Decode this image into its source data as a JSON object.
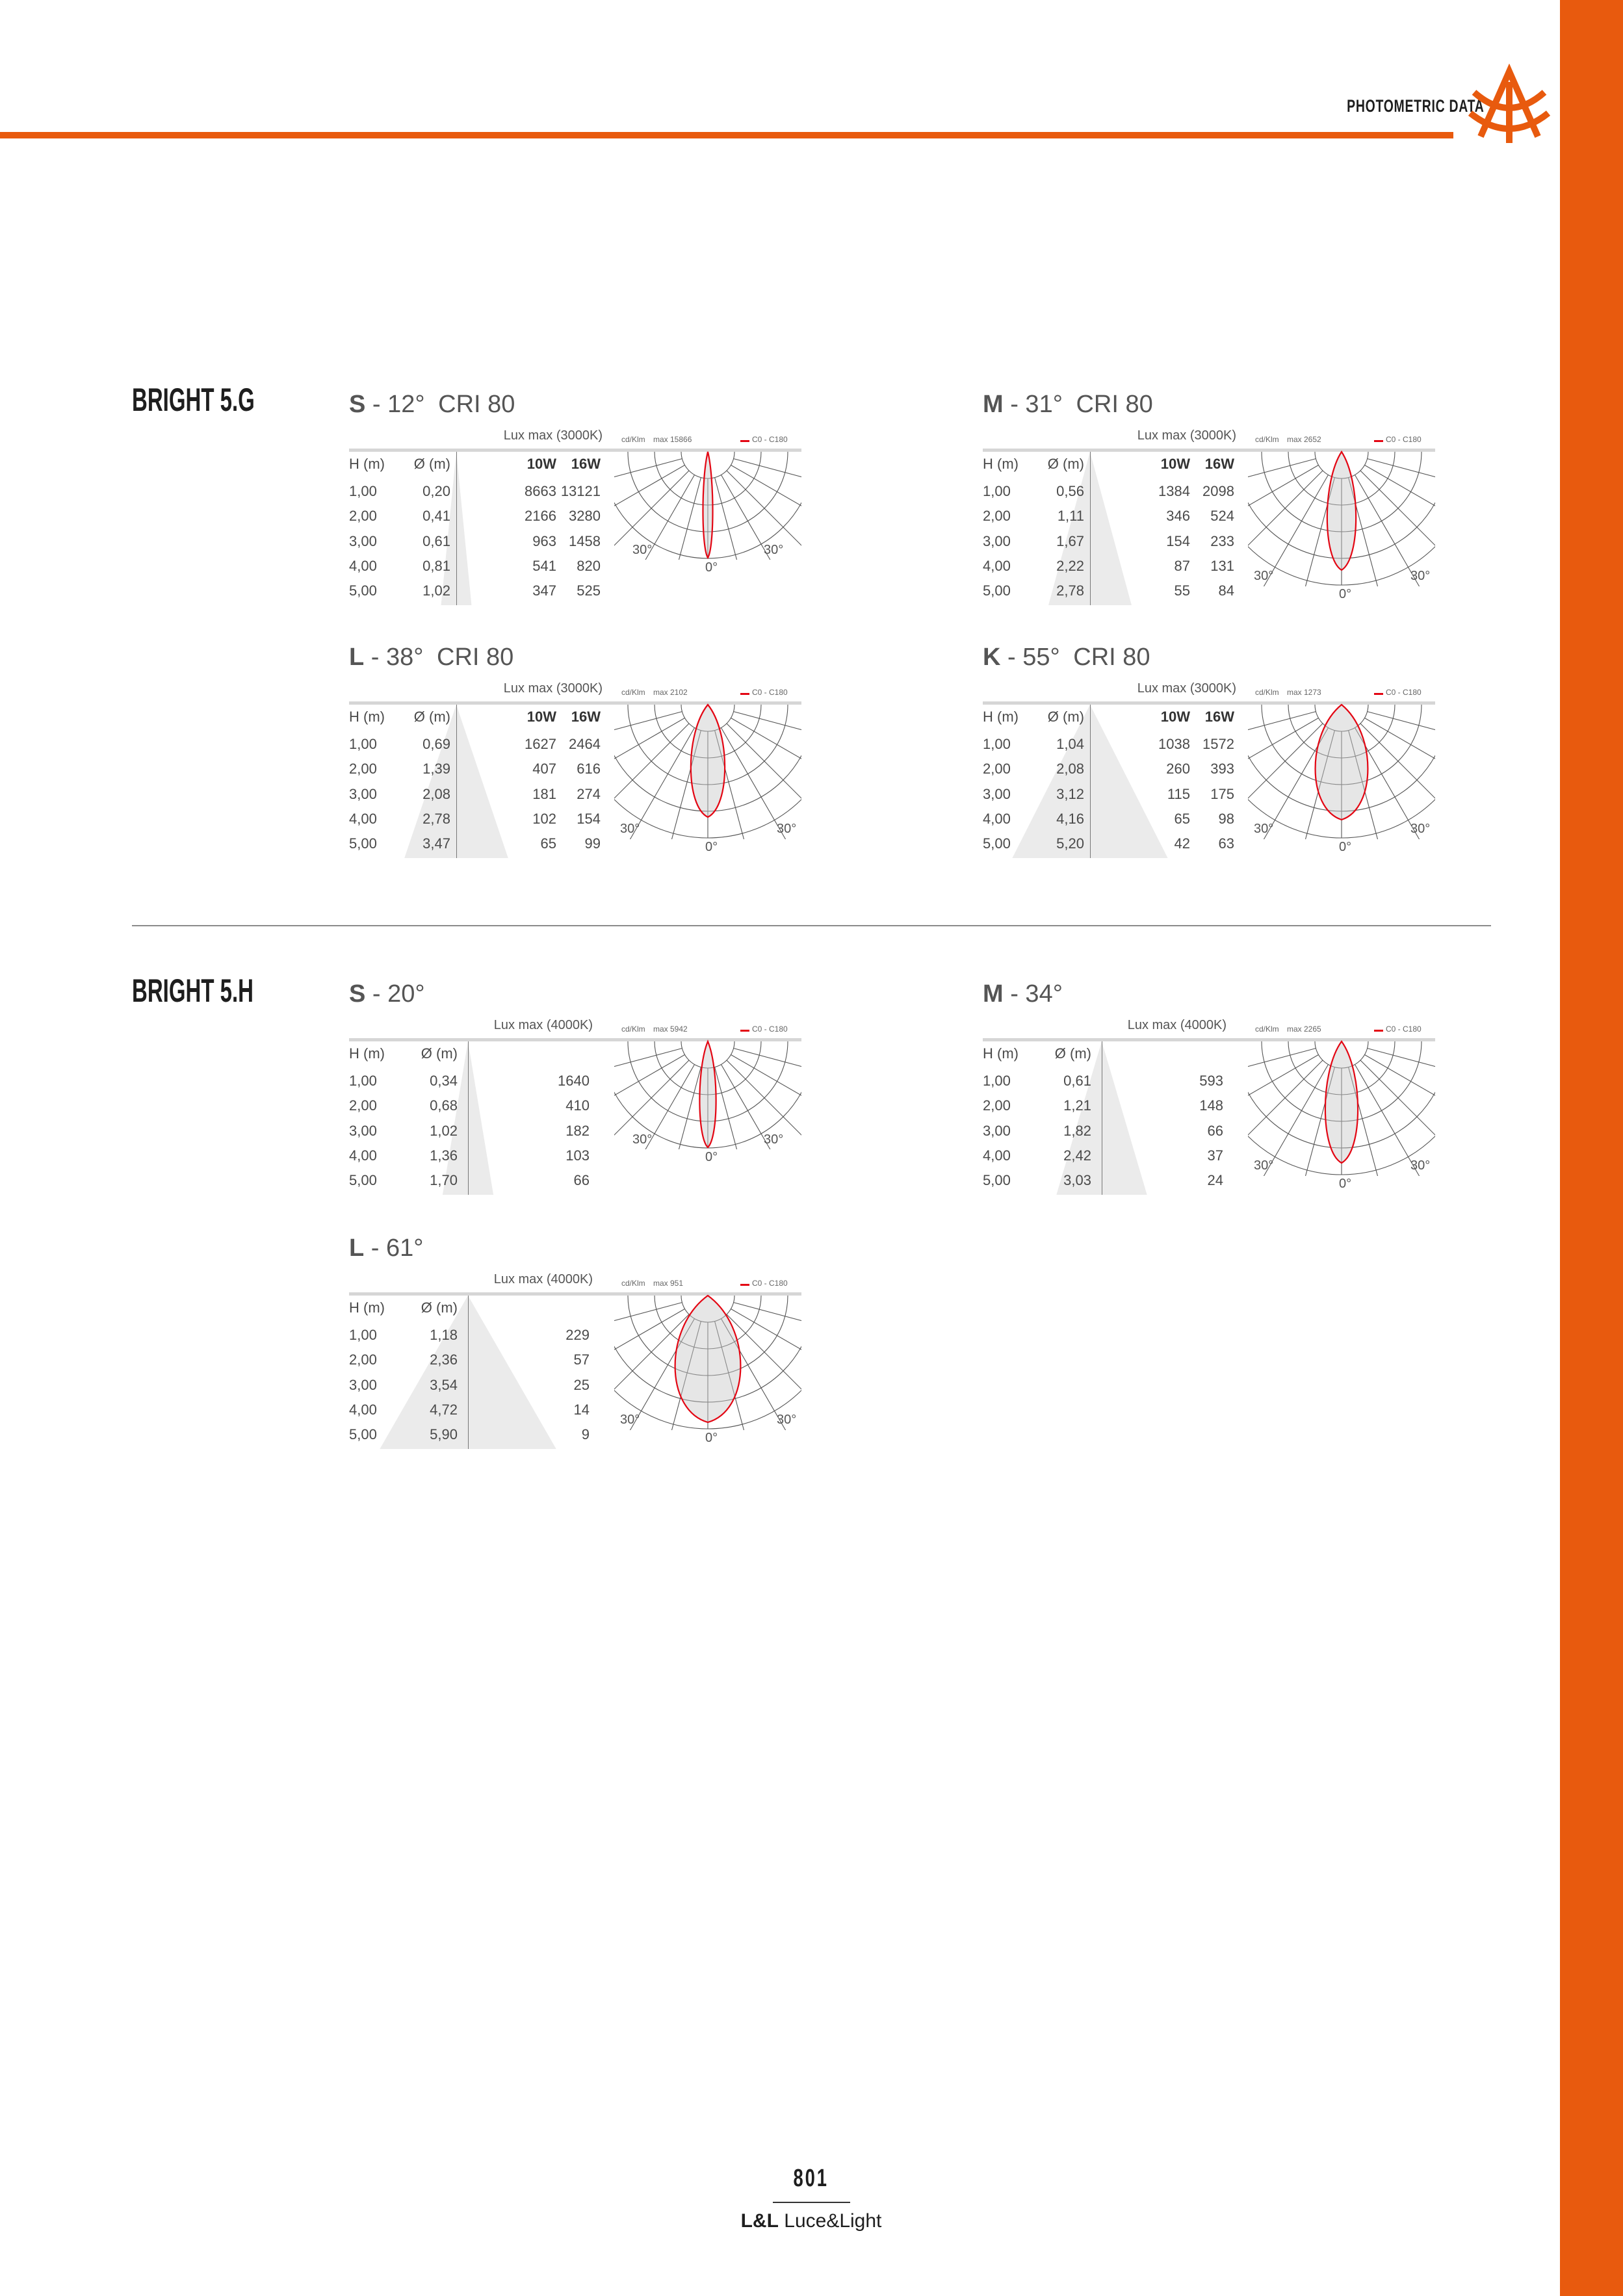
{
  "header": {
    "title": "PHOTOMETRIC DATA"
  },
  "colors": {
    "accent": "#e85a0e",
    "curve": "#e30613",
    "cone": "#ebebeb",
    "bar": "#d6d6d6"
  },
  "sections": [
    {
      "name": "BRIGHT 5.G",
      "blocks": [
        {
          "code": "S",
          "angle": "- 12°",
          "cri": "CRI 80",
          "lux_label": "Lux max (3000K)",
          "unit": "cd/Klm",
          "max": "max 15866",
          "legend": "C0 - C180",
          "headers": {
            "h": "H (m)",
            "d": "Ø (m)",
            "w": [
              "10W",
              "16W"
            ]
          },
          "rows": [
            [
              "1,00",
              "0,20",
              "8663",
              "13121"
            ],
            [
              "2,00",
              "0,41",
              "2166",
              "3280"
            ],
            [
              "3,00",
              "0,61",
              "963",
              "1458"
            ],
            [
              "4,00",
              "0,81",
              "541",
              "820"
            ],
            [
              "5,00",
              "1,02",
              "347",
              "525"
            ]
          ],
          "polar": {
            "left_label": "30°",
            "right_label": "30°",
            "bottom_label": "0°"
          }
        },
        {
          "code": "M",
          "angle": "- 31°",
          "cri": "CRI 80",
          "lux_label": "Lux max (3000K)",
          "unit": "cd/Klm",
          "max": "max 2652",
          "legend": "C0 - C180",
          "headers": {
            "h": "H (m)",
            "d": "Ø (m)",
            "w": [
              "10W",
              "16W"
            ]
          },
          "rows": [
            [
              "1,00",
              "0,56",
              "1384",
              "2098"
            ],
            [
              "2,00",
              "1,11",
              "346",
              "524"
            ],
            [
              "3,00",
              "1,67",
              "154",
              "233"
            ],
            [
              "4,00",
              "2,22",
              "87",
              "131"
            ],
            [
              "5,00",
              "2,78",
              "55",
              "84"
            ]
          ],
          "polar": {
            "left_label": "30°",
            "right_label": "30°",
            "bottom_label": "0°"
          }
        },
        {
          "code": "L",
          "angle": "- 38°",
          "cri": "CRI 80",
          "lux_label": "Lux max (3000K)",
          "unit": "cd/Klm",
          "max": "max 2102",
          "legend": "C0 - C180",
          "headers": {
            "h": "H (m)",
            "d": "Ø (m)",
            "w": [
              "10W",
              "16W"
            ]
          },
          "rows": [
            [
              "1,00",
              "0,69",
              "1627",
              "2464"
            ],
            [
              "2,00",
              "1,39",
              "407",
              "616"
            ],
            [
              "3,00",
              "2,08",
              "181",
              "274"
            ],
            [
              "4,00",
              "2,78",
              "102",
              "154"
            ],
            [
              "5,00",
              "3,47",
              "65",
              "99"
            ]
          ],
          "polar": {
            "left_label": "30°",
            "right_label": "30°",
            "bottom_label": "0°"
          }
        },
        {
          "code": "K",
          "angle": "- 55°",
          "cri": "CRI 80",
          "lux_label": "Lux max (3000K)",
          "unit": "cd/Klm",
          "max": "max 1273",
          "legend": "C0 - C180",
          "headers": {
            "h": "H (m)",
            "d": "Ø (m)",
            "w": [
              "10W",
              "16W"
            ]
          },
          "rows": [
            [
              "1,00",
              "1,04",
              "1038",
              "1572"
            ],
            [
              "2,00",
              "2,08",
              "260",
              "393"
            ],
            [
              "3,00",
              "3,12",
              "115",
              "175"
            ],
            [
              "4,00",
              "4,16",
              "65",
              "98"
            ],
            [
              "5,00",
              "5,20",
              "42",
              "63"
            ]
          ],
          "polar": {
            "left_label": "30°",
            "right_label": "30°",
            "bottom_label": "0°"
          }
        }
      ]
    },
    {
      "name": "BRIGHT 5.H",
      "blocks": [
        {
          "code": "S",
          "angle": "- 20°",
          "cri": "",
          "lux_label": "Lux max (4000K)",
          "unit": "cd/Klm",
          "max": "max 5942",
          "legend": "C0 - C180",
          "headers": {
            "h": "H (m)",
            "d": "Ø (m)",
            "w": []
          },
          "rows": [
            [
              "1,00",
              "0,34",
              "1640"
            ],
            [
              "2,00",
              "0,68",
              "410"
            ],
            [
              "3,00",
              "1,02",
              "182"
            ],
            [
              "4,00",
              "1,36",
              "103"
            ],
            [
              "5,00",
              "1,70",
              "66"
            ]
          ],
          "polar": {
            "left_label": "30°",
            "right_label": "30°",
            "bottom_label": "0°"
          }
        },
        {
          "code": "M",
          "angle": "- 34°",
          "cri": "",
          "lux_label": "Lux max (4000K)",
          "unit": "cd/Klm",
          "max": "max 2265",
          "legend": "C0 - C180",
          "headers": {
            "h": "H (m)",
            "d": "Ø (m)",
            "w": []
          },
          "rows": [
            [
              "1,00",
              "0,61",
              "593"
            ],
            [
              "2,00",
              "1,21",
              "148"
            ],
            [
              "3,00",
              "1,82",
              "66"
            ],
            [
              "4,00",
              "2,42",
              "37"
            ],
            [
              "5,00",
              "3,03",
              "24"
            ]
          ],
          "polar": {
            "left_label": "30°",
            "right_label": "30°",
            "bottom_label": "0°"
          }
        },
        {
          "code": "L",
          "angle": "- 61°",
          "cri": "",
          "lux_label": "Lux max (4000K)",
          "unit": "cd/Klm",
          "max": "max 951",
          "legend": "C0 - C180",
          "headers": {
            "h": "H (m)",
            "d": "Ø (m)",
            "w": []
          },
          "rows": [
            [
              "1,00",
              "1,18",
              "229"
            ],
            [
              "2,00",
              "2,36",
              "57"
            ],
            [
              "3,00",
              "3,54",
              "25"
            ],
            [
              "4,00",
              "4,72",
              "14"
            ],
            [
              "5,00",
              "5,90",
              "9"
            ]
          ],
          "polar": {
            "left_label": "30°",
            "right_label": "30°",
            "bottom_label": "0°"
          }
        }
      ]
    }
  ],
  "footer": {
    "page": "801",
    "brand_bold": "L&L",
    "brand": "Luce&Light"
  }
}
